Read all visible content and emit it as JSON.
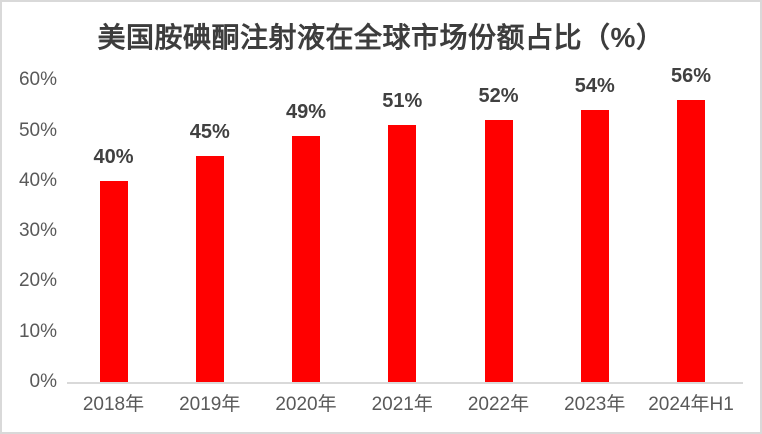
{
  "chart_data": {
    "type": "bar",
    "title": "美国胺碘酮注射液在全球市场份额占比（%）",
    "categories": [
      "2018年",
      "2019年",
      "2020年",
      "2021年",
      "2022年",
      "2023年",
      "2024年H1"
    ],
    "values": [
      40,
      45,
      49,
      51,
      52,
      54,
      56
    ],
    "value_labels": [
      "40%",
      "45%",
      "49%",
      "51%",
      "52%",
      "54%",
      "56%"
    ],
    "ytick_labels": [
      "0%",
      "10%",
      "20%",
      "30%",
      "40%",
      "50%",
      "60%"
    ],
    "ytick_values": [
      0,
      10,
      20,
      30,
      40,
      50,
      60
    ],
    "ylim": [
      0,
      60
    ],
    "xlabel": "",
    "ylabel": "",
    "grid": false,
    "legend": false,
    "bar_color": "#ff0000"
  },
  "colors": {
    "bar": "#ff0000",
    "title_text": "#3d3d3d",
    "value_label_text": "#404040",
    "axis_label_text": "#595959",
    "axis_line": "#d9d9d9",
    "frame_border": "#d9d9d9",
    "background": "#ffffff"
  }
}
